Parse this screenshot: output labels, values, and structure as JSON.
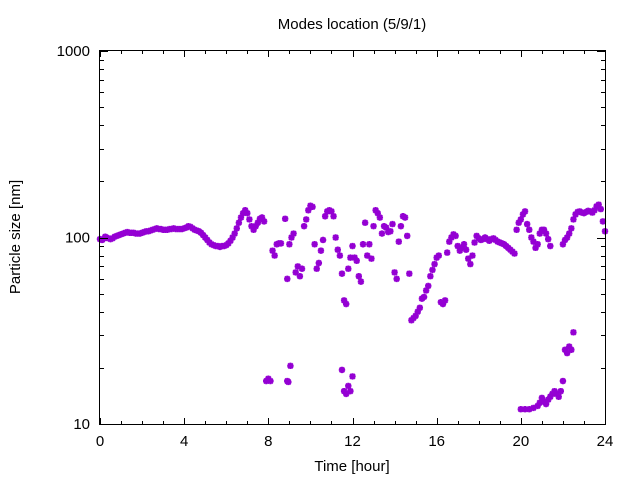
{
  "chart_data": {
    "type": "scatter",
    "title": "Modes location (5/9/1)",
    "xlabel": "Time [hour]",
    "ylabel": "Particle size [nm]",
    "xlim": [
      0,
      24
    ],
    "ylim": [
      10,
      1000
    ],
    "yscale": "log",
    "xticks": [
      0,
      4,
      8,
      12,
      16,
      20,
      24
    ],
    "xtick_labels": [
      "0",
      "4",
      "8",
      "12",
      "16",
      "20",
      "24"
    ],
    "yticks": [
      10,
      100,
      1000
    ],
    "ytick_labels": [
      "10",
      "100",
      "1000"
    ],
    "grid": false,
    "legend": "none",
    "marker": "asterisk",
    "color": "#9400d3",
    "series": [
      {
        "values": [
          [
            0.0,
            98
          ],
          [
            0.1,
            97
          ],
          [
            0.2,
            99
          ],
          [
            0.25,
            101
          ],
          [
            0.3,
            100
          ],
          [
            0.4,
            99
          ],
          [
            0.5,
            98
          ],
          [
            0.6,
            99
          ],
          [
            0.7,
            101
          ],
          [
            0.8,
            102
          ],
          [
            0.9,
            103
          ],
          [
            1.0,
            104
          ],
          [
            1.1,
            105
          ],
          [
            1.2,
            106
          ],
          [
            1.3,
            107
          ],
          [
            1.4,
            106
          ],
          [
            1.5,
            106
          ],
          [
            1.6,
            106
          ],
          [
            1.7,
            105
          ],
          [
            1.8,
            105
          ],
          [
            1.9,
            105
          ],
          [
            2.0,
            106
          ],
          [
            2.1,
            107
          ],
          [
            2.2,
            108
          ],
          [
            2.3,
            108
          ],
          [
            2.4,
            109
          ],
          [
            2.5,
            110
          ],
          [
            2.6,
            111
          ],
          [
            2.7,
            112
          ],
          [
            2.8,
            111
          ],
          [
            2.9,
            111
          ],
          [
            3.0,
            110
          ],
          [
            3.1,
            110
          ],
          [
            3.2,
            110
          ],
          [
            3.3,
            111
          ],
          [
            3.4,
            111
          ],
          [
            3.5,
            112
          ],
          [
            3.6,
            111
          ],
          [
            3.7,
            111
          ],
          [
            3.8,
            111
          ],
          [
            3.9,
            111
          ],
          [
            4.0,
            112
          ],
          [
            4.1,
            113
          ],
          [
            4.2,
            115
          ],
          [
            4.3,
            114
          ],
          [
            4.4,
            112
          ],
          [
            4.5,
            110
          ],
          [
            4.6,
            109
          ],
          [
            4.7,
            108
          ],
          [
            4.8,
            106
          ],
          [
            4.9,
            103
          ],
          [
            5.0,
            100
          ],
          [
            5.1,
            97
          ],
          [
            5.2,
            94
          ],
          [
            5.3,
            92
          ],
          [
            5.4,
            91
          ],
          [
            5.5,
            90
          ],
          [
            5.6,
            90
          ],
          [
            5.7,
            89
          ],
          [
            5.8,
            90
          ],
          [
            5.9,
            90
          ],
          [
            6.0,
            91
          ],
          [
            6.1,
            93
          ],
          [
            6.2,
            96
          ],
          [
            6.3,
            100
          ],
          [
            6.4,
            105
          ],
          [
            6.5,
            112
          ],
          [
            6.6,
            120
          ],
          [
            6.7,
            128
          ],
          [
            6.8,
            135
          ],
          [
            6.9,
            140
          ],
          [
            7.0,
            135
          ],
          [
            7.1,
            125
          ],
          [
            7.2,
            115
          ],
          [
            7.3,
            110
          ],
          [
            7.4,
            115
          ],
          [
            7.5,
            120
          ],
          [
            7.6,
            126
          ],
          [
            7.7,
            128
          ],
          [
            7.8,
            122
          ],
          [
            8.2,
            85
          ],
          [
            8.3,
            80
          ],
          [
            8.4,
            92
          ],
          [
            8.5,
            93
          ],
          [
            8.6,
            93
          ],
          [
            8.8,
            126
          ],
          [
            8.9,
            60
          ],
          [
            9.0,
            92
          ],
          [
            9.1,
            100
          ],
          [
            9.2,
            105
          ],
          [
            9.3,
            65
          ],
          [
            9.4,
            70
          ],
          [
            9.5,
            62
          ],
          [
            9.6,
            68
          ],
          [
            9.7,
            115
          ],
          [
            9.8,
            125
          ],
          [
            9.9,
            140
          ],
          [
            10.0,
            148
          ],
          [
            10.1,
            146
          ],
          [
            10.2,
            92
          ],
          [
            10.3,
            68
          ],
          [
            10.4,
            73
          ],
          [
            10.5,
            85
          ],
          [
            10.6,
            97
          ],
          [
            10.7,
            130
          ],
          [
            10.8,
            138
          ],
          [
            10.9,
            140
          ],
          [
            11.0,
            138
          ],
          [
            11.1,
            130
          ],
          [
            11.2,
            100
          ],
          [
            11.3,
            86
          ],
          [
            11.4,
            80
          ],
          [
            11.5,
            64
          ],
          [
            11.6,
            46
          ],
          [
            11.7,
            44
          ],
          [
            11.8,
            68
          ],
          [
            11.9,
            78
          ],
          [
            12.0,
            90
          ],
          [
            12.1,
            78
          ],
          [
            12.2,
            75
          ],
          [
            12.3,
            62
          ],
          [
            12.4,
            58
          ],
          [
            12.5,
            92
          ],
          [
            12.6,
            120
          ],
          [
            12.7,
            80
          ],
          [
            12.8,
            92
          ],
          [
            12.9,
            77
          ],
          [
            13.0,
            115
          ],
          [
            13.1,
            140
          ],
          [
            13.2,
            135
          ],
          [
            13.3,
            128
          ],
          [
            13.4,
            105
          ],
          [
            13.5,
            115
          ],
          [
            13.6,
            113
          ],
          [
            13.7,
            107
          ],
          [
            13.8,
            108
          ],
          [
            13.9,
            118
          ],
          [
            14.0,
            65
          ],
          [
            14.1,
            60
          ],
          [
            14.2,
            95
          ],
          [
            14.3,
            115
          ],
          [
            14.4,
            130
          ],
          [
            14.5,
            128
          ],
          [
            14.6,
            102
          ],
          [
            14.7,
            64
          ],
          [
            14.8,
            36
          ],
          [
            14.9,
            37
          ],
          [
            15.0,
            38
          ],
          [
            15.1,
            40
          ],
          [
            15.2,
            42
          ],
          [
            15.3,
            47
          ],
          [
            15.4,
            48
          ],
          [
            15.5,
            52
          ],
          [
            15.6,
            55
          ],
          [
            15.7,
            62
          ],
          [
            15.8,
            67
          ],
          [
            15.9,
            72
          ],
          [
            16.0,
            78
          ],
          [
            16.1,
            80
          ],
          [
            16.2,
            45
          ],
          [
            16.3,
            44
          ],
          [
            16.4,
            46
          ],
          [
            16.5,
            83
          ],
          [
            16.6,
            95
          ],
          [
            16.7,
            100
          ],
          [
            16.8,
            104
          ],
          [
            16.9,
            102
          ],
          [
            17.0,
            90
          ],
          [
            17.1,
            85
          ],
          [
            17.2,
            88
          ],
          [
            17.3,
            92
          ],
          [
            17.4,
            86
          ],
          [
            17.5,
            77
          ],
          [
            17.6,
            72
          ],
          [
            17.7,
            80
          ],
          [
            17.8,
            94
          ],
          [
            17.9,
            102
          ],
          [
            18.0,
            99
          ],
          [
            18.1,
            97
          ],
          [
            18.2,
            98
          ],
          [
            18.3,
            100
          ],
          [
            18.4,
            98
          ],
          [
            18.5,
            96
          ],
          [
            18.6,
            98
          ],
          [
            18.7,
            99
          ],
          [
            18.8,
            97
          ],
          [
            18.9,
            95
          ],
          [
            19.0,
            94
          ],
          [
            19.1,
            93
          ],
          [
            19.2,
            92
          ],
          [
            19.3,
            90
          ],
          [
            19.4,
            88
          ],
          [
            19.5,
            86
          ],
          [
            19.6,
            84
          ],
          [
            19.7,
            82
          ],
          [
            19.8,
            110
          ],
          [
            19.9,
            120
          ],
          [
            20.0,
            125
          ],
          [
            20.1,
            133
          ],
          [
            20.2,
            138
          ],
          [
            20.3,
            118
          ],
          [
            20.4,
            110
          ],
          [
            20.5,
            100
          ],
          [
            20.6,
            95
          ],
          [
            20.7,
            88
          ],
          [
            20.8,
            92
          ],
          [
            20.9,
            105
          ],
          [
            21.0,
            110
          ],
          [
            21.1,
            110
          ],
          [
            21.2,
            105
          ],
          [
            21.3,
            98
          ],
          [
            21.4,
            90
          ],
          [
            22.0,
            92
          ],
          [
            22.1,
            97
          ],
          [
            22.2,
            100
          ],
          [
            22.3,
            105
          ],
          [
            22.4,
            112
          ],
          [
            22.5,
            125
          ],
          [
            22.6,
            133
          ],
          [
            22.7,
            137
          ],
          [
            22.8,
            138
          ],
          [
            22.9,
            136
          ],
          [
            23.0,
            135
          ],
          [
            23.1,
            137
          ],
          [
            23.2,
            139
          ],
          [
            23.3,
            138
          ],
          [
            23.4,
            136
          ],
          [
            23.5,
            140
          ],
          [
            23.6,
            147
          ],
          [
            23.7,
            150
          ],
          [
            23.8,
            142
          ],
          [
            23.9,
            122
          ],
          [
            24.0,
            108
          ],
          [
            7.9,
            17
          ],
          [
            8.0,
            17.5
          ],
          [
            8.1,
            17
          ],
          [
            8.9,
            17
          ],
          [
            8.95,
            16.8
          ],
          [
            9.05,
            20.5
          ],
          [
            11.5,
            19.5
          ],
          [
            11.6,
            15
          ],
          [
            11.7,
            14.5
          ],
          [
            11.8,
            16
          ],
          [
            11.9,
            15
          ],
          [
            12.0,
            18
          ],
          [
            20.0,
            12
          ],
          [
            20.2,
            12
          ],
          [
            20.4,
            12
          ],
          [
            20.6,
            12.2
          ],
          [
            20.8,
            12.5
          ],
          [
            20.9,
            13
          ],
          [
            21.0,
            13.8
          ],
          [
            21.1,
            13.2
          ],
          [
            21.2,
            12.8
          ],
          [
            21.3,
            13.5
          ],
          [
            21.4,
            14
          ],
          [
            21.5,
            14.5
          ],
          [
            21.6,
            15
          ],
          [
            21.7,
            14.5
          ],
          [
            21.8,
            14
          ],
          [
            21.9,
            15
          ],
          [
            22.0,
            17
          ],
          [
            22.1,
            25
          ],
          [
            22.2,
            24
          ],
          [
            22.3,
            26
          ],
          [
            22.4,
            25
          ],
          [
            22.5,
            31
          ]
        ]
      }
    ]
  }
}
